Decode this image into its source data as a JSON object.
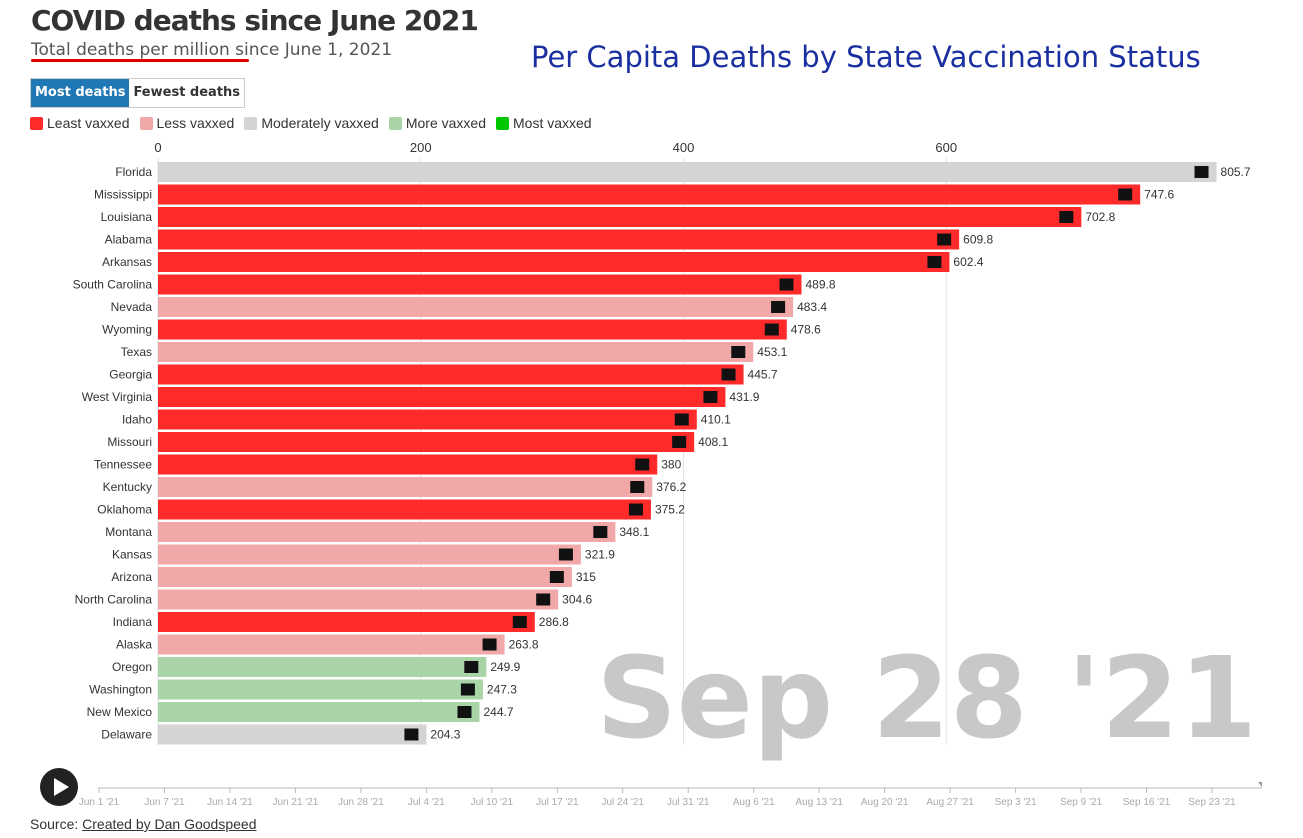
{
  "header": {
    "title": "COVID deaths since June 2021",
    "subtitle": "Total deaths per million since June 1, 2021",
    "overlay_title": "Per Capita Deaths by State Vaccination Status"
  },
  "toggle": {
    "active_label": "Most deaths",
    "inactive_label": "Fewest deaths"
  },
  "legend": [
    {
      "label": "Least vaxxed",
      "color": "#ff2a2a"
    },
    {
      "label": "Less vaxxed",
      "color": "#f0a8a8"
    },
    {
      "label": "Moderately vaxxed",
      "color": "#d4d4d4"
    },
    {
      "label": "More vaxxed",
      "color": "#a8d4a8"
    },
    {
      "label": "Most vaxxed",
      "color": "#00c800"
    }
  ],
  "chart_data": {
    "type": "bar",
    "orientation": "horizontal",
    "xlim": [
      0,
      820
    ],
    "x_ticks": [
      0,
      200,
      400,
      600
    ],
    "grid": true,
    "current_date": "Sep 28 '21",
    "categories": [
      "Florida",
      "Mississippi",
      "Louisiana",
      "Alabama",
      "Arkansas",
      "South Carolina",
      "Nevada",
      "Wyoming",
      "Texas",
      "Georgia",
      "West Virginia",
      "Idaho",
      "Missouri",
      "Tennessee",
      "Kentucky",
      "Oklahoma",
      "Montana",
      "Kansas",
      "Arizona",
      "North Carolina",
      "Indiana",
      "Alaska",
      "Oregon",
      "Washington",
      "New Mexico",
      "Delaware"
    ],
    "values": [
      805.7,
      747.6,
      702.8,
      609.8,
      602.4,
      489.8,
      483.4,
      478.6,
      453.1,
      445.7,
      431.9,
      410.1,
      408.1,
      380,
      376.2,
      375.2,
      348.1,
      321.9,
      315,
      304.6,
      286.8,
      263.8,
      249.9,
      247.3,
      244.7,
      204.3
    ],
    "value_labels": [
      "805.7",
      "747.6",
      "702.8",
      "609.8",
      "602.4",
      "489.8",
      "483.4",
      "478.6",
      "453.1",
      "445.7",
      "431.9",
      "410.1",
      "408.1",
      "380",
      "376.2",
      "375.2",
      "348.1",
      "321.9",
      "315",
      "304.6",
      "286.8",
      "263.8",
      "249.9",
      "247.3",
      "244.7",
      "204.3"
    ],
    "vax_group": [
      "Moderately vaxxed",
      "Least vaxxed",
      "Least vaxxed",
      "Least vaxxed",
      "Least vaxxed",
      "Least vaxxed",
      "Less vaxxed",
      "Least vaxxed",
      "Less vaxxed",
      "Least vaxxed",
      "Least vaxxed",
      "Least vaxxed",
      "Least vaxxed",
      "Least vaxxed",
      "Less vaxxed",
      "Least vaxxed",
      "Less vaxxed",
      "Less vaxxed",
      "Less vaxxed",
      "Less vaxxed",
      "Least vaxxed",
      "Less vaxxed",
      "More vaxxed",
      "More vaxxed",
      "More vaxxed",
      "Moderately vaxxed"
    ]
  },
  "timeline": {
    "labels": [
      "Jun 1 '21",
      "Jun 7 '21",
      "Jun 14 '21",
      "Jun 21 '21",
      "Jun 28 '21",
      "Jul 4 '21",
      "Jul 10 '21",
      "Jul 17 '21",
      "Jul 24 '21",
      "Jul 31 '21",
      "Aug 6 '21",
      "Aug 13 '21",
      "Aug 20 '21",
      "Aug 27 '21",
      "Sep 3 '21",
      "Sep 9 '21",
      "Sep 16 '21",
      "Sep 23 '21"
    ],
    "progress": 1.0
  },
  "footer": {
    "source_prefix": "Source: ",
    "source_link": "Created by Dan Goodspeed"
  }
}
